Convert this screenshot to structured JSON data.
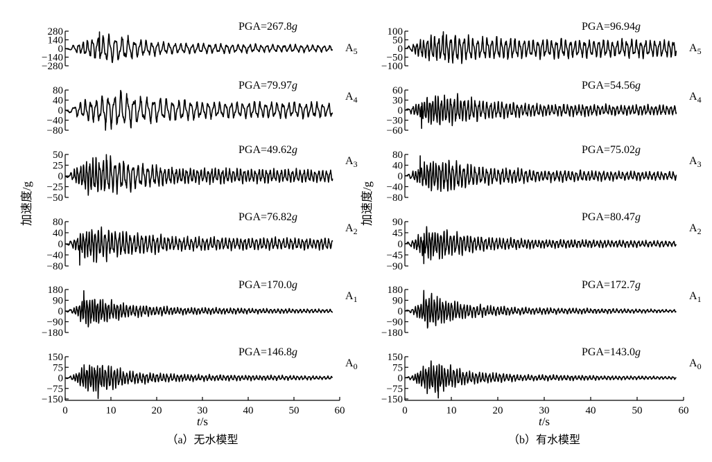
{
  "chart_data": [
    {
      "type": "line",
      "caption": "（a）无水模型",
      "xlabel": "t/s",
      "ylabel": "加速度/g",
      "xlim": [
        0,
        60
      ],
      "xticks": [
        "0",
        "10",
        "20",
        "30",
        "40",
        "50",
        "60"
      ],
      "panels": [
        {
          "channel": "A5",
          "pga": "PGA=267.8g",
          "ylim": [
            -280,
            280
          ],
          "ytick_labels": [
            "280",
            "140",
            "0",
            "−140",
            "−280"
          ],
          "peak": 267.8,
          "t_end": 58.5,
          "peak_time": 7.5,
          "segments": [
            {
              "t": 3,
              "amp": 90,
              "f": 1.1
            },
            {
              "t": 6,
              "amp": 180,
              "f": 0.9
            },
            {
              "t": 9,
              "amp": 240,
              "f": 0.75
            },
            {
              "t": 13,
              "amp": 200,
              "f": 0.7
            },
            {
              "t": 17,
              "amp": 130,
              "f": 0.8
            },
            {
              "t": 25,
              "amp": 85,
              "f": 0.8
            },
            {
              "t": 45,
              "amp": 65,
              "f": 0.8
            },
            {
              "t": 58.5,
              "amp": 55,
              "f": 0.8
            }
          ]
        },
        {
          "channel": "A4",
          "pga": "PGA=79.97g",
          "ylim": [
            -80,
            80
          ],
          "ytick_labels": [
            "80",
            "40",
            "0",
            "−40",
            "−80"
          ],
          "peak": 79.97,
          "t_end": 58.5,
          "peak_time": 8.8,
          "segments": [
            {
              "t": 3,
              "amp": 30,
              "f": 0.9
            },
            {
              "t": 7,
              "amp": 50,
              "f": 0.8
            },
            {
              "t": 12,
              "amp": 75,
              "f": 0.7
            },
            {
              "t": 18,
              "amp": 50,
              "f": 0.7
            },
            {
              "t": 30,
              "amp": 35,
              "f": 0.8
            },
            {
              "t": 58.5,
              "amp": 30,
              "f": 0.8
            }
          ]
        },
        {
          "channel": "A3",
          "pga": "PGA=49.62g",
          "ylim": [
            -50,
            50
          ],
          "ytick_labels": [
            "50",
            "25",
            "0",
            "−25",
            "−50"
          ],
          "peak": 49.62,
          "t_end": 58.5,
          "peak_time": 9.0,
          "segments": [
            {
              "t": 2,
              "amp": 15,
              "f": 1.5
            },
            {
              "t": 5,
              "amp": 40,
              "f": 1.5
            },
            {
              "t": 10,
              "amp": 45,
              "f": 1.1
            },
            {
              "t": 16,
              "amp": 30,
              "f": 0.9
            },
            {
              "t": 25,
              "amp": 18,
              "f": 1.3
            },
            {
              "t": 58.5,
              "amp": 15,
              "f": 1.2
            }
          ]
        },
        {
          "channel": "A2",
          "pga": "PGA=76.82g",
          "ylim": [
            -80,
            80
          ],
          "ytick_labels": [
            "80",
            "40",
            "0",
            "−40",
            "−80"
          ],
          "peak": 76.82,
          "t_end": 58.5,
          "peak_time": 3.2,
          "segments": [
            {
              "t": 2,
              "amp": 20,
              "f": 1.5
            },
            {
              "t": 5,
              "amp": 60,
              "f": 1.6
            },
            {
              "t": 9,
              "amp": 55,
              "f": 1.3
            },
            {
              "t": 15,
              "amp": 40,
              "f": 1.2
            },
            {
              "t": 25,
              "amp": 25,
              "f": 1.2
            },
            {
              "t": 58.5,
              "amp": 20,
              "f": 1.2
            }
          ]
        },
        {
          "channel": "A1",
          "pga": "PGA=170.0g",
          "ylim": [
            -180,
            180
          ],
          "ytick_labels": [
            "180",
            "90",
            "0",
            "−90",
            "−180"
          ],
          "peak": 170.0,
          "t_end": 58.5,
          "peak_time": 4.1,
          "segments": [
            {
              "t": 2,
              "amp": 30,
              "f": 1.7
            },
            {
              "t": 5,
              "amp": 140,
              "f": 1.8
            },
            {
              "t": 9,
              "amp": 90,
              "f": 1.6
            },
            {
              "t": 14,
              "amp": 55,
              "f": 1.4
            },
            {
              "t": 25,
              "amp": 30,
              "f": 1.3
            },
            {
              "t": 58.5,
              "amp": 15,
              "f": 1.2
            }
          ]
        },
        {
          "channel": "A0",
          "pga": "PGA=146.8g",
          "ylim": [
            -150,
            150
          ],
          "ytick_labels": [
            "150",
            "75",
            "0",
            "−75",
            "−150"
          ],
          "peak": 146.8,
          "t_end": 58.5,
          "peak_time": 7.2,
          "segments": [
            {
              "t": 2,
              "amp": 25,
              "f": 1.7
            },
            {
              "t": 5,
              "amp": 110,
              "f": 1.8
            },
            {
              "t": 9,
              "amp": 90,
              "f": 1.6
            },
            {
              "t": 14,
              "amp": 45,
              "f": 1.4
            },
            {
              "t": 25,
              "amp": 25,
              "f": 1.3
            },
            {
              "t": 58.5,
              "amp": 12,
              "f": 1.2
            }
          ]
        }
      ]
    },
    {
      "type": "line",
      "caption": "（b）有水模型",
      "xlabel": "t/s",
      "ylabel": "加速度/g",
      "xlim": [
        0,
        60
      ],
      "xticks": [
        "0",
        "10",
        "20",
        "30",
        "40",
        "50",
        "60"
      ],
      "panels": [
        {
          "channel": "A5",
          "pga": "PGA=96.94g",
          "ylim": [
            -100,
            100
          ],
          "ytick_labels": [
            "100",
            "50",
            "0",
            "−50",
            "−100"
          ],
          "peak": 96.94,
          "t_end": 58.5,
          "peak_time": 8.3,
          "segments": [
            {
              "t": 2,
              "amp": 30,
              "f": 1.4
            },
            {
              "t": 5,
              "amp": 75,
              "f": 1.3
            },
            {
              "t": 10,
              "amp": 85,
              "f": 1.1
            },
            {
              "t": 16,
              "amp": 65,
              "f": 1.0
            },
            {
              "t": 30,
              "amp": 55,
              "f": 1.0
            },
            {
              "t": 58.5,
              "amp": 50,
              "f": 1.0
            }
          ]
        },
        {
          "channel": "A4",
          "pga": "PGA=54.56g",
          "ylim": [
            -60,
            60
          ],
          "ytick_labels": [
            "60",
            "30",
            "0",
            "−30",
            "−60"
          ],
          "peak": 54.56,
          "t_end": 58.5,
          "peak_time": 3.6,
          "segments": [
            {
              "t": 2,
              "amp": 15,
              "f": 1.6
            },
            {
              "t": 5,
              "amp": 42,
              "f": 1.7
            },
            {
              "t": 10,
              "amp": 45,
              "f": 1.4
            },
            {
              "t": 16,
              "amp": 30,
              "f": 1.2
            },
            {
              "t": 30,
              "amp": 18,
              "f": 1.2
            },
            {
              "t": 58.5,
              "amp": 15,
              "f": 1.2
            }
          ]
        },
        {
          "channel": "A3",
          "pga": "PGA=75.02g",
          "ylim": [
            -80,
            80
          ],
          "ytick_labels": [
            "80",
            "40",
            "0",
            "−40",
            "−80"
          ],
          "peak": 75.02,
          "t_end": 58.5,
          "peak_time": 3.3,
          "segments": [
            {
              "t": 2,
              "amp": 20,
              "f": 1.6
            },
            {
              "t": 5,
              "amp": 55,
              "f": 1.6
            },
            {
              "t": 10,
              "amp": 60,
              "f": 1.3
            },
            {
              "t": 16,
              "amp": 35,
              "f": 1.2
            },
            {
              "t": 30,
              "amp": 22,
              "f": 1.2
            },
            {
              "t": 58.5,
              "amp": 15,
              "f": 1.2
            }
          ]
        },
        {
          "channel": "A2",
          "pga": "PGA=80.47g",
          "ylim": [
            -90,
            90
          ],
          "ytick_labels": [
            "90",
            "45",
            "0",
            "−45",
            "−90"
          ],
          "peak": 80.47,
          "t_end": 58.5,
          "peak_time": 4.1,
          "segments": [
            {
              "t": 2,
              "amp": 20,
              "f": 1.7
            },
            {
              "t": 5,
              "amp": 65,
              "f": 1.7
            },
            {
              "t": 10,
              "amp": 50,
              "f": 1.4
            },
            {
              "t": 16,
              "amp": 30,
              "f": 1.3
            },
            {
              "t": 30,
              "amp": 18,
              "f": 1.3
            },
            {
              "t": 58.5,
              "amp": 12,
              "f": 1.2
            }
          ]
        },
        {
          "channel": "A1",
          "pga": "PGA=172.7g",
          "ylim": [
            -180,
            180
          ],
          "ytick_labels": [
            "180",
            "90",
            "0",
            "−90",
            "−180"
          ],
          "peak": 172.7,
          "t_end": 58.5,
          "peak_time": 4.1,
          "segments": [
            {
              "t": 2,
              "amp": 30,
              "f": 1.7
            },
            {
              "t": 5,
              "amp": 140,
              "f": 1.8
            },
            {
              "t": 9,
              "amp": 95,
              "f": 1.6
            },
            {
              "t": 14,
              "amp": 55,
              "f": 1.4
            },
            {
              "t": 25,
              "amp": 30,
              "f": 1.3
            },
            {
              "t": 58.5,
              "amp": 12,
              "f": 1.2
            }
          ]
        },
        {
          "channel": "A0",
          "pga": "PGA=143.0g",
          "ylim": [
            -150,
            150
          ],
          "ytick_labels": [
            "150",
            "75",
            "0",
            "−75",
            "−150"
          ],
          "peak": 143.0,
          "t_end": 58.5,
          "peak_time": 7.2,
          "segments": [
            {
              "t": 2,
              "amp": 25,
              "f": 1.7
            },
            {
              "t": 5,
              "amp": 110,
              "f": 1.8
            },
            {
              "t": 9,
              "amp": 85,
              "f": 1.6
            },
            {
              "t": 14,
              "amp": 45,
              "f": 1.4
            },
            {
              "t": 25,
              "amp": 22,
              "f": 1.3
            },
            {
              "t": 58.5,
              "amp": 10,
              "f": 1.2
            }
          ]
        }
      ]
    }
  ]
}
